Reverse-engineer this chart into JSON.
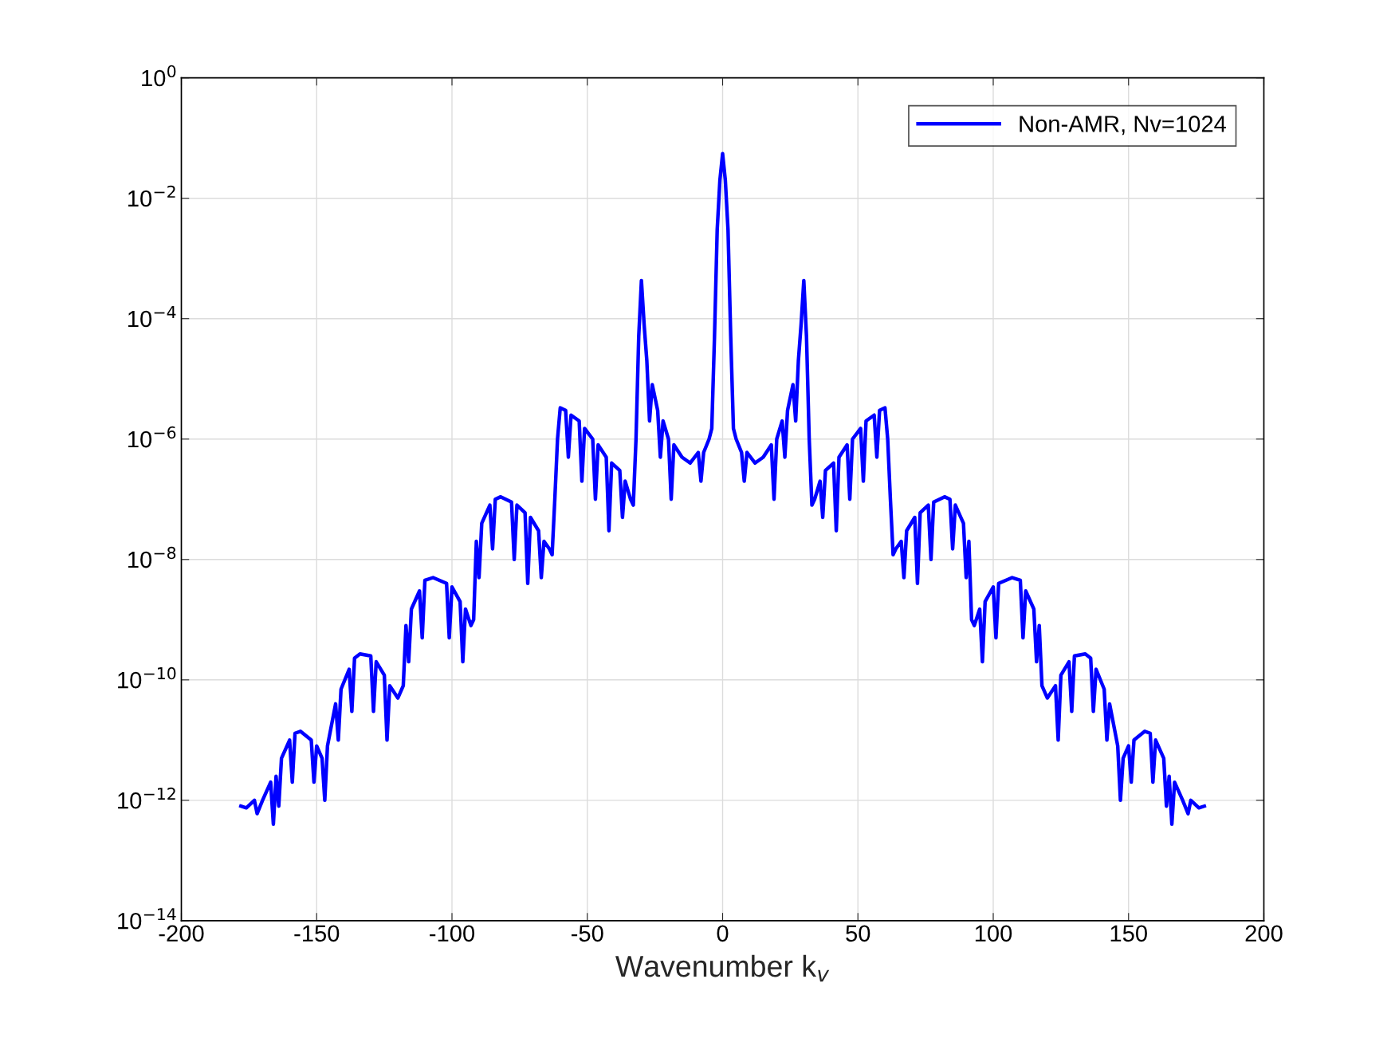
{
  "chart_data": {
    "type": "line",
    "xlabel": "Wavenumber k$_{v}$",
    "x": [
      -178,
      -176,
      -173,
      -172,
      -170,
      -167,
      -166,
      -165,
      -164,
      -163,
      -160,
      -159,
      -158,
      -156,
      -152,
      -151,
      -150,
      -148,
      -147,
      -146,
      -143,
      -142,
      -141,
      -138,
      -137,
      -136,
      -134,
      -130,
      -129,
      -128,
      -125,
      -124,
      -123,
      -120,
      -118,
      -117,
      -116,
      -115,
      -112,
      -111,
      -110,
      -107,
      -102,
      -101,
      -100,
      -97,
      -96,
      -95,
      -93,
      -92,
      -91,
      -90,
      -89,
      -86,
      -85,
      -84,
      -82,
      -78,
      -77,
      -76,
      -73,
      -72,
      -71,
      -68,
      -67,
      -66,
      -64,
      -63,
      -62,
      -61,
      -60,
      -58,
      -57,
      -56,
      -53,
      -52,
      -51,
      -48,
      -47,
      -46,
      -43,
      -42,
      -41,
      -38,
      -37,
      -36,
      -34,
      -33,
      -32,
      -31,
      -30,
      -29,
      -28,
      -27,
      -26,
      -24,
      -23,
      -22,
      -20,
      -19,
      -18,
      -15,
      -12,
      -9,
      -8,
      -7,
      -5,
      -4,
      -3,
      -2,
      -1,
      0,
      1,
      2,
      3,
      4,
      5,
      7,
      8,
      9,
      12,
      15,
      18,
      19,
      20,
      22,
      23,
      24,
      26,
      27,
      28,
      29,
      30,
      31,
      32,
      33,
      34,
      36,
      37,
      38,
      41,
      42,
      43,
      46,
      47,
      48,
      51,
      52,
      53,
      56,
      57,
      58,
      60,
      61,
      62,
      63,
      64,
      66,
      67,
      68,
      71,
      72,
      73,
      76,
      77,
      78,
      82,
      84,
      85,
      86,
      89,
      90,
      91,
      92,
      93,
      95,
      96,
      97,
      100,
      101,
      102,
      107,
      110,
      111,
      112,
      115,
      116,
      117,
      118,
      120,
      123,
      124,
      125,
      128,
      129,
      130,
      134,
      136,
      137,
      138,
      141,
      142,
      143,
      146,
      147,
      148,
      150,
      151,
      152,
      156,
      158,
      159,
      160,
      163,
      164,
      165,
      166,
      167,
      170,
      172,
      173,
      176,
      178
    ],
    "series": [
      {
        "name": "Non-AMR, Nv=1024",
        "color": "#0000ff",
        "values": [
          8e-13,
          7.5e-13,
          1e-12,
          6e-13,
          1e-12,
          2e-12,
          4e-13,
          2.5e-12,
          8e-13,
          5e-12,
          1e-11,
          2e-12,
          1.3e-11,
          1.4e-11,
          1e-11,
          2e-12,
          8e-12,
          5e-12,
          1e-12,
          8e-12,
          4e-11,
          1e-11,
          7e-11,
          1.5e-10,
          3e-11,
          2.3e-10,
          2.7e-10,
          2.5e-10,
          3e-11,
          2e-10,
          1.2e-10,
          1e-11,
          8e-11,
          5e-11,
          8e-11,
          8e-10,
          2e-10,
          1.5e-09,
          3e-09,
          5e-10,
          4.5e-09,
          5e-09,
          4e-09,
          5e-10,
          3.5e-09,
          2e-09,
          2e-10,
          1.5e-09,
          8e-10,
          1e-09,
          2e-08,
          5e-09,
          4e-08,
          8e-08,
          1.5e-08,
          1e-07,
          1.1e-07,
          9e-08,
          1e-08,
          8e-08,
          6e-08,
          4e-09,
          5e-08,
          3e-08,
          5e-09,
          2e-08,
          1.5e-08,
          1.2e-08,
          1e-07,
          1e-06,
          3.3e-06,
          3e-06,
          5e-07,
          2.5e-06,
          2e-06,
          2e-07,
          1.5e-06,
          1e-06,
          1e-07,
          8e-07,
          5e-07,
          3e-08,
          4e-07,
          3e-07,
          5e-08,
          2e-07,
          1e-07,
          8e-08,
          1e-06,
          5e-05,
          0.00043,
          8e-05,
          2e-05,
          2e-06,
          8e-06,
          3e-06,
          5e-07,
          2e-06,
          1e-06,
          1e-07,
          8e-07,
          5e-07,
          4e-07,
          6e-07,
          2e-07,
          6e-07,
          1e-06,
          1.5e-06,
          5e-05,
          0.003,
          0.02,
          0.055,
          0.02,
          0.003,
          5e-05,
          1.5e-06,
          1e-06,
          6e-07,
          2e-07,
          6e-07,
          4e-07,
          5e-07,
          8e-07,
          1e-07,
          1e-06,
          2e-06,
          5e-07,
          3e-06,
          8e-06,
          2e-06,
          2e-05,
          8e-05,
          0.00043,
          5e-05,
          1e-06,
          8e-08,
          1e-07,
          2e-07,
          5e-08,
          3e-07,
          4e-07,
          3e-08,
          5e-07,
          8e-07,
          1e-07,
          1e-06,
          1.5e-06,
          2e-07,
          2e-06,
          2.5e-06,
          5e-07,
          3e-06,
          3.3e-06,
          1e-06,
          1e-07,
          1.2e-08,
          1.5e-08,
          2e-08,
          5e-09,
          3e-08,
          5e-08,
          4e-09,
          6e-08,
          8e-08,
          1e-08,
          9e-08,
          1.1e-07,
          1e-07,
          1.5e-08,
          8e-08,
          4e-08,
          5e-09,
          2e-08,
          1e-09,
          8e-10,
          1.5e-09,
          2e-10,
          2e-09,
          3.5e-09,
          5e-10,
          4e-09,
          5e-09,
          4.5e-09,
          5e-10,
          3e-09,
          1.5e-09,
          2e-10,
          8e-10,
          8e-11,
          5e-11,
          8e-11,
          1e-11,
          1.2e-10,
          2e-10,
          3e-11,
          2.5e-10,
          2.7e-10,
          2.3e-10,
          3e-11,
          1.5e-10,
          7e-11,
          1e-11,
          4e-11,
          8e-12,
          1e-12,
          5e-12,
          8e-12,
          2e-12,
          1e-11,
          1.4e-11,
          1.3e-11,
          2e-12,
          1e-11,
          5e-12,
          8e-13,
          2.5e-12,
          4e-13,
          2e-12,
          1e-12,
          6e-13,
          1e-12,
          7.5e-13,
          8e-13
        ]
      }
    ],
    "log": "y",
    "xlim": [
      -200,
      200
    ],
    "xticks": [
      -200,
      -150,
      -100,
      -50,
      0,
      50,
      100,
      150,
      200
    ],
    "ylim": [
      1e-14,
      1
    ],
    "yticks": [
      {
        "value": 1e-14,
        "label": "10$^{−14}$"
      },
      {
        "value": 1e-12,
        "label": "10$^{−12}$"
      },
      {
        "value": 1e-10,
        "label": "10$^{−10}$"
      },
      {
        "value": 1e-08,
        "label": "10$^{−8}$"
      },
      {
        "value": 1e-06,
        "label": "10$^{−6}$"
      },
      {
        "value": 0.0001,
        "label": "10$^{−4}$"
      },
      {
        "value": 0.01,
        "label": "10$^{−2}$"
      },
      {
        "value": 1,
        "label": "10$^{0}$"
      }
    ],
    "grid": true,
    "legend": "top right",
    "line_style": "solid",
    "marker": "none"
  }
}
